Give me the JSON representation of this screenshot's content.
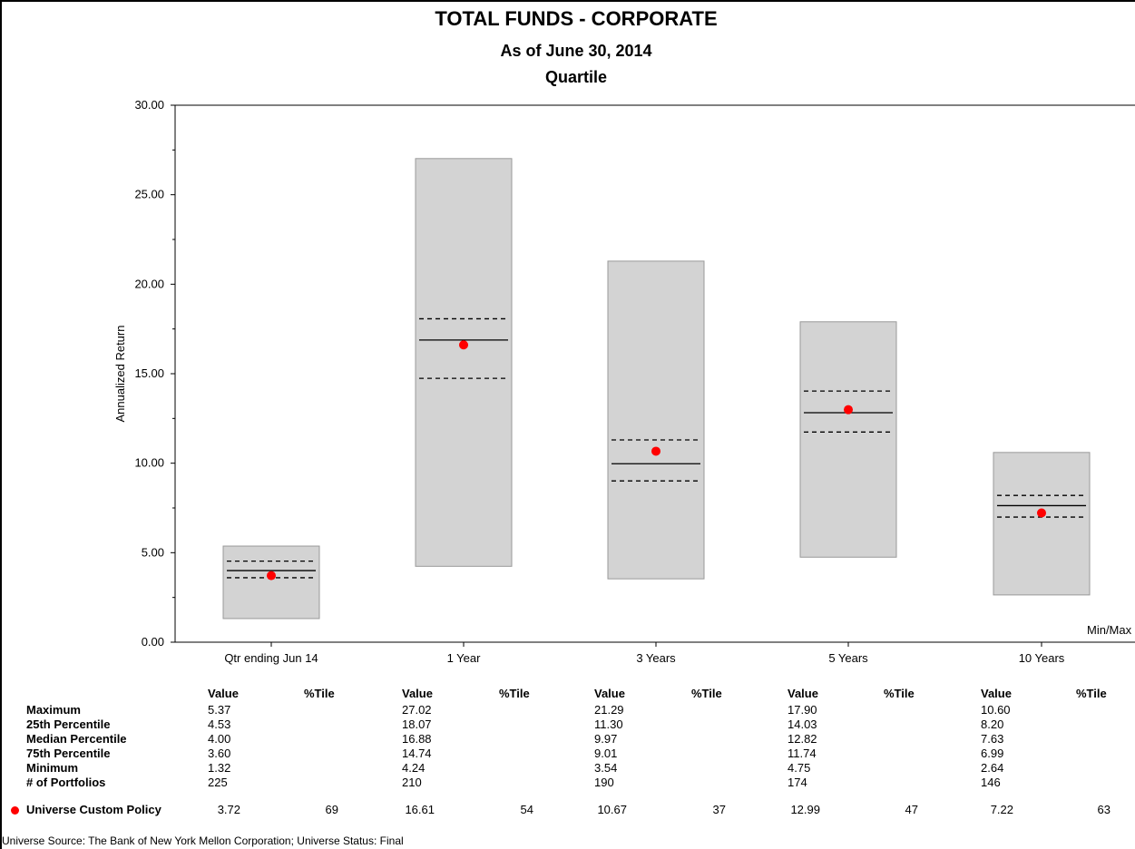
{
  "colors": {
    "box_fill": "#d3d3d3",
    "box_stroke": "#999999",
    "marker": "#ff0000",
    "line": "#000000"
  },
  "chart_data": {
    "type": "box-range",
    "title": "TOTAL FUNDS - CORPORATE",
    "subtitle": "As of June 30, 2014",
    "subtitle2": "Quartile",
    "ylabel": "Annualized Return",
    "ylim": [
      0,
      30
    ],
    "yticks": [
      "0.00",
      "5.00",
      "10.00",
      "15.00",
      "20.00",
      "25.00",
      "30.00"
    ],
    "legend_note": "Min/Max",
    "categories": [
      "Qtr ending Jun 14",
      "1 Year",
      "3 Years",
      "5 Years",
      "10 Years"
    ],
    "series": [
      {
        "name": "Maximum",
        "values": [
          5.37,
          27.02,
          21.29,
          17.9,
          10.6
        ]
      },
      {
        "name": "25th Percentile",
        "values": [
          4.53,
          18.07,
          11.3,
          14.03,
          8.2
        ]
      },
      {
        "name": "Median Percentile",
        "values": [
          4.0,
          16.88,
          9.97,
          12.82,
          7.63
        ]
      },
      {
        "name": "75th Percentile",
        "values": [
          3.6,
          14.74,
          9.01,
          11.74,
          6.99
        ]
      },
      {
        "name": "Minimum",
        "values": [
          1.32,
          4.24,
          3.54,
          4.75,
          2.64
        ]
      },
      {
        "name": "Universe Custom Policy",
        "values": [
          3.72,
          16.61,
          10.67,
          12.99,
          7.22
        ]
      }
    ]
  },
  "table": {
    "col_headers": {
      "value": "Value",
      "tile": "%Tile"
    },
    "row_labels": [
      "Maximum",
      "25th Percentile",
      "Median Percentile",
      "75th Percentile",
      "Minimum",
      "# of Portfolios"
    ],
    "values": [
      [
        "5.37",
        "4.53",
        "4.00",
        "3.60",
        "1.32",
        "225"
      ],
      [
        "27.02",
        "18.07",
        "16.88",
        "14.74",
        "4.24",
        "210"
      ],
      [
        "21.29",
        "11.30",
        "9.97",
        "9.01",
        "3.54",
        "190"
      ],
      [
        "17.90",
        "14.03",
        "12.82",
        "11.74",
        "4.75",
        "174"
      ],
      [
        "10.60",
        "8.20",
        "7.63",
        "6.99",
        "2.64",
        "146"
      ]
    ],
    "policy_label": "Universe Custom Policy",
    "policy_values": [
      "3.72",
      "16.61",
      "10.67",
      "12.99",
      "7.22"
    ],
    "policy_tiles": [
      "69",
      "54",
      "37",
      "47",
      "63"
    ]
  },
  "footer": {
    "source": "Universe Source: The Bank of New York Mellon Corporation;  Universe Status: Final"
  }
}
